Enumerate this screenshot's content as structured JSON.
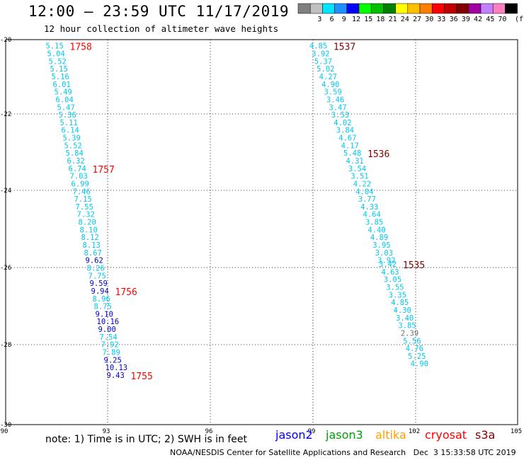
{
  "header": {
    "title": "12:00 – 23:59 UTC 11/17/2019",
    "subtitle": "12 hour collection of altimeter wave heights"
  },
  "color_scale": {
    "unit": "(ft)",
    "bins": [
      {
        "label": "",
        "color": "#808080"
      },
      {
        "label": "3",
        "color": "#c0c0c0"
      },
      {
        "label": "6",
        "color": "#00e5ff"
      },
      {
        "label": "9",
        "color": "#1e90ff"
      },
      {
        "label": "12",
        "color": "#0000ff"
      },
      {
        "label": "15",
        "color": "#00ff00"
      },
      {
        "label": "18",
        "color": "#00c000"
      },
      {
        "label": "21",
        "color": "#008000"
      },
      {
        "label": "24",
        "color": "#ffff00"
      },
      {
        "label": "27",
        "color": "#ffc000"
      },
      {
        "label": "30",
        "color": "#ff8000"
      },
      {
        "label": "33",
        "color": "#ff0000"
      },
      {
        "label": "36",
        "color": "#c00000"
      },
      {
        "label": "39",
        "color": "#800000"
      },
      {
        "label": "42",
        "color": "#a000a0"
      },
      {
        "label": "45",
        "color": "#c080ff"
      },
      {
        "label": "70",
        "color": "#ff80c0"
      },
      {
        "label": "",
        "color": "#000000"
      }
    ]
  },
  "map": {
    "lon_ticks": [
      "90",
      "93",
      "96",
      "99",
      "102",
      "105"
    ],
    "lat_ticks": [
      "-20",
      "-22",
      "-24",
      "-26",
      "-28",
      "-30"
    ],
    "colors": {
      "cyan": "#00c8f0",
      "blue": "#0000cc",
      "gray": "#707070",
      "red": "#ff0000",
      "darkred": "#800000",
      "black": "#000000"
    },
    "track_west": [
      {
        "v": "5.15",
        "c": "cyan",
        "lat": -20.05
      },
      {
        "v": "5.04",
        "c": "cyan",
        "lat": -20.25
      },
      {
        "v": "5.52",
        "c": "cyan",
        "lat": -20.45
      },
      {
        "v": "5.15",
        "c": "cyan",
        "lat": -20.65
      },
      {
        "v": "5.16",
        "c": "cyan",
        "lat": -20.85
      },
      {
        "v": "6.01",
        "c": "cyan",
        "lat": -21.05
      },
      {
        "v": "5.49",
        "c": "cyan",
        "lat": -21.25
      },
      {
        "v": "6.04",
        "c": "cyan",
        "lat": -21.45
      },
      {
        "v": "5.47",
        "c": "cyan",
        "lat": -21.65
      },
      {
        "v": "5.36",
        "c": "cyan",
        "lat": -21.85
      },
      {
        "v": "5.11",
        "c": "cyan",
        "lat": -22.05
      },
      {
        "v": "6.14",
        "c": "cyan",
        "lat": -22.25
      },
      {
        "v": "5.39",
        "c": "cyan",
        "lat": -22.45
      },
      {
        "v": "5.52",
        "c": "cyan",
        "lat": -22.65
      },
      {
        "v": "5.84",
        "c": "cyan",
        "lat": -22.85
      },
      {
        "v": "6.32",
        "c": "cyan",
        "lat": -23.05
      },
      {
        "v": "6.74",
        "c": "cyan",
        "lat": -23.25
      },
      {
        "v": "7.03",
        "c": "cyan",
        "lat": -23.45
      },
      {
        "v": "6.99",
        "c": "cyan",
        "lat": -23.65
      },
      {
        "v": "7.46",
        "c": "cyan",
        "lat": -23.85
      },
      {
        "v": "7.15",
        "c": "cyan",
        "lat": -24.05
      },
      {
        "v": "7.55",
        "c": "cyan",
        "lat": -24.25
      },
      {
        "v": "7.32",
        "c": "cyan",
        "lat": -24.45
      },
      {
        "v": "8.20",
        "c": "cyan",
        "lat": -24.65
      },
      {
        "v": "8.10",
        "c": "cyan",
        "lat": -24.85
      },
      {
        "v": "8.12",
        "c": "cyan",
        "lat": -25.05
      },
      {
        "v": "8.13",
        "c": "cyan",
        "lat": -25.25
      },
      {
        "v": "8.67",
        "c": "cyan",
        "lat": -25.45
      },
      {
        "v": "9.62",
        "c": "blue",
        "lat": -25.65
      },
      {
        "v": "8.26",
        "c": "cyan",
        "lat": -25.85
      },
      {
        "v": "7.75",
        "c": "cyan",
        "lat": -26.05
      },
      {
        "v": "9.59",
        "c": "blue",
        "lat": -26.25
      },
      {
        "v": "9.94",
        "c": "blue",
        "lat": -26.45
      },
      {
        "v": "8.96",
        "c": "cyan",
        "lat": -26.65
      },
      {
        "v": "8.75",
        "c": "cyan",
        "lat": -26.85
      },
      {
        "v": "9.10",
        "c": "blue",
        "lat": -27.05
      },
      {
        "v": "10.16",
        "c": "blue",
        "lat": -27.25
      },
      {
        "v": "9.00",
        "c": "blue",
        "lat": -27.45
      },
      {
        "v": "7.54",
        "c": "cyan",
        "lat": -27.65
      },
      {
        "v": "7.92",
        "c": "cyan",
        "lat": -27.85
      },
      {
        "v": "7.89",
        "c": "cyan",
        "lat": -28.05
      },
      {
        "v": "9.25",
        "c": "blue",
        "lat": -28.25
      },
      {
        "v": "10.13",
        "c": "blue",
        "lat": -28.45
      },
      {
        "v": "9.43",
        "c": "blue",
        "lat": -28.65
      }
    ],
    "track_east": [
      {
        "v": "4.85",
        "c": "cyan",
        "lat": -20.05
      },
      {
        "v": "3.92",
        "c": "cyan",
        "lat": -20.25
      },
      {
        "v": "5.37",
        "c": "cyan",
        "lat": -20.45
      },
      {
        "v": "5.02",
        "c": "cyan",
        "lat": -20.65
      },
      {
        "v": "4.27",
        "c": "cyan",
        "lat": -20.85
      },
      {
        "v": "4.90",
        "c": "cyan",
        "lat": -21.05
      },
      {
        "v": "3.59",
        "c": "cyan",
        "lat": -21.25
      },
      {
        "v": "3.46",
        "c": "cyan",
        "lat": -21.45
      },
      {
        "v": "3.47",
        "c": "cyan",
        "lat": -21.65
      },
      {
        "v": "3.53",
        "c": "cyan",
        "lat": -21.85
      },
      {
        "v": "4.02",
        "c": "cyan",
        "lat": -22.05
      },
      {
        "v": "3.84",
        "c": "cyan",
        "lat": -22.25
      },
      {
        "v": "4.67",
        "c": "cyan",
        "lat": -22.45
      },
      {
        "v": "4.17",
        "c": "cyan",
        "lat": -22.65
      },
      {
        "v": "5.48",
        "c": "cyan",
        "lat": -22.85
      },
      {
        "v": "4.31",
        "c": "cyan",
        "lat": -23.05
      },
      {
        "v": "3.54",
        "c": "cyan",
        "lat": -23.25
      },
      {
        "v": "3.51",
        "c": "cyan",
        "lat": -23.45
      },
      {
        "v": "4.22",
        "c": "cyan",
        "lat": -23.65
      },
      {
        "v": "4.04",
        "c": "cyan",
        "lat": -23.85
      },
      {
        "v": "3.77",
        "c": "cyan",
        "lat": -24.05
      },
      {
        "v": "4.33",
        "c": "cyan",
        "lat": -24.25
      },
      {
        "v": "4.64",
        "c": "cyan",
        "lat": -24.45
      },
      {
        "v": "3.85",
        "c": "cyan",
        "lat": -24.65
      },
      {
        "v": "4.40",
        "c": "cyan",
        "lat": -24.85
      },
      {
        "v": "4.89",
        "c": "cyan",
        "lat": -25.05
      },
      {
        "v": "3.95",
        "c": "cyan",
        "lat": -25.25
      },
      {
        "v": "3.03",
        "c": "cyan",
        "lat": -25.45
      },
      {
        "v": "3.92",
        "c": "cyan",
        "lat": -25.65
      },
      {
        "v": "3.42",
        "c": "cyan",
        "lat": -25.75
      },
      {
        "v": "4.63",
        "c": "cyan",
        "lat": -25.95
      },
      {
        "v": "3.05",
        "c": "cyan",
        "lat": -26.15
      },
      {
        "v": "3.55",
        "c": "cyan",
        "lat": -26.35
      },
      {
        "v": "3.35",
        "c": "cyan",
        "lat": -26.55
      },
      {
        "v": "4.85",
        "c": "cyan",
        "lat": -26.75
      },
      {
        "v": "4.30",
        "c": "cyan",
        "lat": -26.95
      },
      {
        "v": "3.40",
        "c": "cyan",
        "lat": -27.15
      },
      {
        "v": "3.85",
        "c": "cyan",
        "lat": -27.35
      },
      {
        "v": "2.39",
        "c": "gray",
        "lat": -27.55
      },
      {
        "v": "5.56",
        "c": "cyan",
        "lat": -27.75
      },
      {
        "v": "4.76",
        "c": "cyan",
        "lat": -27.95
      },
      {
        "v": "5.25",
        "c": "cyan",
        "lat": -28.15
      },
      {
        "v": "4.90",
        "c": "cyan",
        "lat": -28.35
      }
    ],
    "time_labels": [
      {
        "v": "1758",
        "c": "red",
        "track": "west",
        "lat": -20.05
      },
      {
        "v": "1757",
        "c": "red",
        "track": "west",
        "lat": -23.25
      },
      {
        "v": "1756",
        "c": "red",
        "track": "west",
        "lat": -26.45
      },
      {
        "v": "1755",
        "c": "red",
        "track": "west",
        "lat": -28.65
      },
      {
        "v": "1537",
        "c": "darkred",
        "track": "east",
        "lat": -20.05
      },
      {
        "v": "1536",
        "c": "darkred",
        "track": "east",
        "lat": -22.85
      },
      {
        "v": "1535",
        "c": "darkred",
        "track": "east",
        "lat": -25.75
      }
    ]
  },
  "footer": {
    "note": "note: 1) Time is in UTC; 2) SWH is in feet",
    "legend": [
      {
        "label": "jason2",
        "color": "#0000ff"
      },
      {
        "label": "jason3",
        "color": "#00a000"
      },
      {
        "label": "altika",
        "color": "#ffa000"
      },
      {
        "label": "cryosat",
        "color": "#ff0000"
      },
      {
        "label": "s3a",
        "color": "#800000"
      }
    ],
    "credit": "NOAA/NESDIS Center for Satellite Applications and Research   Dec  3 15:33:58 UTC 2019"
  }
}
